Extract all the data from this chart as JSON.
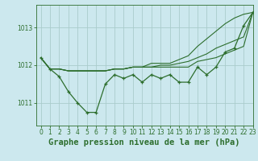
{
  "title": "Graphe pression niveau de la mer (hPa)",
  "bg_color": "#cce8ee",
  "grid_color": "#aacccc",
  "line_color": "#2d6e2d",
  "xlim": [
    -0.5,
    23
  ],
  "ylim": [
    1010.4,
    1013.6
  ],
  "yticks": [
    1011,
    1012,
    1013
  ],
  "xticks": [
    0,
    1,
    2,
    3,
    4,
    5,
    6,
    7,
    8,
    9,
    10,
    11,
    12,
    13,
    14,
    15,
    16,
    17,
    18,
    19,
    20,
    21,
    22,
    23
  ],
  "series": [
    [
      1012.2,
      1011.9,
      1011.7,
      1011.3,
      1011.0,
      1010.75,
      1010.75,
      1011.5,
      1011.75,
      1011.65,
      1011.75,
      1011.55,
      1011.75,
      1011.65,
      1011.75,
      1011.55,
      1011.55,
      1011.95,
      1011.75,
      1011.95,
      1012.35,
      1012.45,
      1013.05,
      1013.4
    ],
    [
      1012.2,
      1011.9,
      1011.9,
      1011.85,
      1011.85,
      1011.85,
      1011.85,
      1011.85,
      1011.9,
      1011.9,
      1011.95,
      1011.95,
      1011.95,
      1011.95,
      1011.95,
      1011.95,
      1011.95,
      1012.1,
      1012.15,
      1012.2,
      1012.3,
      1012.4,
      1012.5,
      1013.4
    ],
    [
      1012.2,
      1011.9,
      1011.9,
      1011.85,
      1011.85,
      1011.85,
      1011.85,
      1011.85,
      1011.9,
      1011.9,
      1011.95,
      1011.95,
      1011.95,
      1012.0,
      1012.0,
      1012.05,
      1012.1,
      1012.2,
      1012.3,
      1012.45,
      1012.55,
      1012.65,
      1012.75,
      1013.4
    ],
    [
      1012.2,
      1011.9,
      1011.9,
      1011.85,
      1011.85,
      1011.85,
      1011.85,
      1011.85,
      1011.9,
      1011.9,
      1011.95,
      1011.95,
      1012.05,
      1012.05,
      1012.05,
      1012.15,
      1012.25,
      1012.5,
      1012.7,
      1012.9,
      1013.1,
      1013.25,
      1013.35,
      1013.4
    ]
  ],
  "title_fontsize": 7.5,
  "tick_fontsize": 5.5,
  "figwidth": 3.2,
  "figheight": 2.0,
  "dpi": 100
}
